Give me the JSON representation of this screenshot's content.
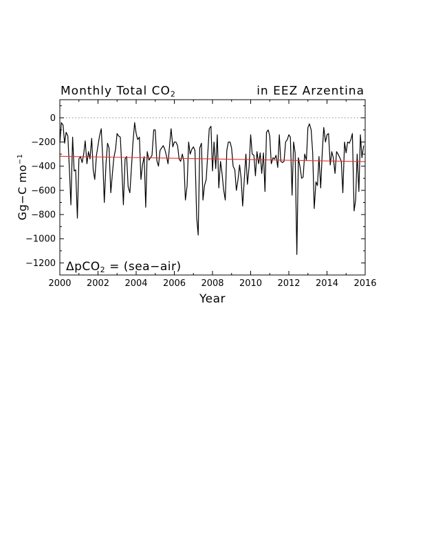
{
  "chart_data": {
    "type": "line",
    "title_left": "Monthly Total CO",
    "title_left_sub": "2",
    "title_right": "in EEZ Arzentina",
    "ylabel": "Gg−C mo",
    "ylabel_sup": "−1",
    "xlabel": "Year",
    "annotation": "ΔpCO",
    "annotation_sub": "2",
    "annotation_rest": " = (sea−air)",
    "xlim": [
      2000,
      2016
    ],
    "ylim": [
      -1300,
      150
    ],
    "x_ticks": [
      2000,
      2002,
      2004,
      2006,
      2008,
      2010,
      2012,
      2014,
      2016
    ],
    "x_tick_labels": [
      "2000",
      "2002",
      "2004",
      "2006",
      "2008",
      "2010",
      "2012",
      "2014",
      "2016"
    ],
    "y_ticks": [
      0,
      -200,
      -400,
      -600,
      -800,
      -1000,
      -1200
    ],
    "y_tick_labels": [
      "0",
      "−200",
      "−400",
      "−600",
      "−800",
      "−1000",
      "−1200"
    ],
    "zero_line": {
      "y": 0,
      "style": "dotted",
      "color": "#888888"
    },
    "series": [
      {
        "color": "#000000",
        "x": [
          2000.0,
          2000.08,
          2000.17,
          2000.25,
          2000.33,
          2000.42,
          2000.5,
          2000.58,
          2000.67,
          2000.75,
          2000.83,
          2000.92,
          2001.0,
          2001.08,
          2001.17,
          2001.25,
          2001.33,
          2001.42,
          2001.5,
          2001.58,
          2001.67,
          2001.75,
          2001.83,
          2001.92,
          2002.0,
          2002.08,
          2002.17,
          2002.25,
          2002.33,
          2002.42,
          2002.5,
          2002.58,
          2002.67,
          2002.75,
          2002.83,
          2002.92,
          2003.0,
          2003.08,
          2003.17,
          2003.25,
          2003.33,
          2003.42,
          2003.5,
          2003.58,
          2003.67,
          2003.75,
          2003.83,
          2003.92,
          2004.0,
          2004.08,
          2004.17,
          2004.25,
          2004.33,
          2004.42,
          2004.5,
          2004.58,
          2004.67,
          2004.75,
          2004.83,
          2004.92,
          2005.0,
          2005.08,
          2005.17,
          2005.25,
          2005.33,
          2005.42,
          2005.5,
          2005.58,
          2005.67,
          2005.75,
          2005.83,
          2005.92,
          2006.0,
          2006.08,
          2006.17,
          2006.25,
          2006.33,
          2006.42,
          2006.5,
          2006.58,
          2006.67,
          2006.75,
          2006.83,
          2006.92,
          2007.0,
          2007.08,
          2007.17,
          2007.25,
          2007.33,
          2007.42,
          2007.5,
          2007.58,
          2007.67,
          2007.75,
          2007.83,
          2007.92,
          2008.0,
          2008.08,
          2008.17,
          2008.25,
          2008.33,
          2008.42,
          2008.5,
          2008.58,
          2008.67,
          2008.75,
          2008.83,
          2008.92,
          2009.0,
          2009.08,
          2009.17,
          2009.25,
          2009.33,
          2009.42,
          2009.5,
          2009.58,
          2009.67,
          2009.75,
          2009.83,
          2009.92,
          2010.0,
          2010.08,
          2010.17,
          2010.25,
          2010.33,
          2010.42,
          2010.5,
          2010.58,
          2010.67,
          2010.75,
          2010.83,
          2010.92,
          2011.0,
          2011.08,
          2011.17,
          2011.25,
          2011.33,
          2011.42,
          2011.5,
          2011.58,
          2011.67,
          2011.75,
          2011.83,
          2011.92,
          2012.0,
          2012.08,
          2012.17,
          2012.25,
          2012.33,
          2012.42,
          2012.5,
          2012.58,
          2012.67,
          2012.75,
          2012.83,
          2012.92,
          2013.0,
          2013.08,
          2013.17,
          2013.25,
          2013.33,
          2013.42,
          2013.5,
          2013.58,
          2013.67,
          2013.75,
          2013.83,
          2013.92,
          2014.0,
          2014.08,
          2014.17,
          2014.25,
          2014.33,
          2014.42,
          2014.5,
          2014.58,
          2014.67,
          2014.75,
          2014.83,
          2014.92,
          2015.0,
          2015.08,
          2015.17,
          2015.25,
          2015.33,
          2015.42,
          2015.5,
          2015.58,
          2015.67,
          2015.75,
          2015.83,
          2015.92
        ],
        "y": [
          -210,
          -40,
          -60,
          -210,
          -120,
          -150,
          -420,
          -720,
          -160,
          -440,
          -430,
          -830,
          -340,
          -320,
          -370,
          -300,
          -190,
          -380,
          -280,
          -340,
          -170,
          -430,
          -510,
          -310,
          -230,
          -150,
          -90,
          -340,
          -700,
          -380,
          -210,
          -250,
          -620,
          -470,
          -330,
          -260,
          -130,
          -150,
          -160,
          -420,
          -720,
          -340,
          -320,
          -570,
          -620,
          -420,
          -210,
          -40,
          -130,
          -180,
          -160,
          -510,
          -390,
          -320,
          -740,
          -280,
          -350,
          -330,
          -310,
          -100,
          -100,
          -350,
          -400,
          -270,
          -250,
          -230,
          -260,
          -310,
          -380,
          -230,
          -90,
          -240,
          -200,
          -200,
          -230,
          -340,
          -360,
          -300,
          -360,
          -680,
          -560,
          -200,
          -300,
          -260,
          -240,
          -270,
          -820,
          -970,
          -250,
          -210,
          -680,
          -560,
          -510,
          -300,
          -90,
          -70,
          -440,
          -200,
          -420,
          -140,
          -580,
          -360,
          -460,
          -590,
          -680,
          -270,
          -200,
          -200,
          -250,
          -400,
          -430,
          -600,
          -520,
          -390,
          -500,
          -730,
          -500,
          -300,
          -550,
          -400,
          -140,
          -300,
          -310,
          -480,
          -280,
          -380,
          -290,
          -460,
          -290,
          -610,
          -120,
          -100,
          -150,
          -380,
          -330,
          -340,
          -310,
          -410,
          -140,
          -360,
          -370,
          -360,
          -200,
          -180,
          -140,
          -160,
          -640,
          -200,
          -290,
          -1130,
          -330,
          -400,
          -500,
          -490,
          -300,
          -350,
          -80,
          -50,
          -100,
          -290,
          -750,
          -530,
          -560,
          -320,
          -580,
          -290,
          -80,
          -200,
          -140,
          -130,
          -390,
          -280,
          -330,
          -460,
          -280,
          -300,
          -330,
          -360,
          -620,
          -200,
          -290,
          -200,
          -210,
          -180,
          -130,
          -770,
          -680,
          -300,
          -610,
          -140,
          -330,
          -230
        ]
      },
      {
        "color": "#e8302c",
        "x": [
          2000,
          2016
        ],
        "y": [
          -318,
          -362
        ]
      }
    ]
  }
}
